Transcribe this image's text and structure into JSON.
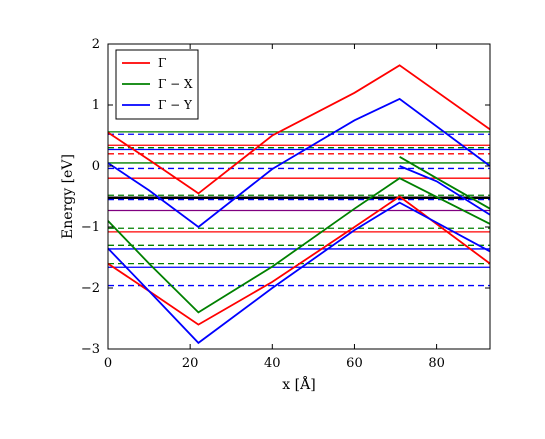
{
  "chart_data": {
    "type": "line",
    "title": "",
    "xlabel": "x [Å]",
    "ylabel": "Energy [eV]",
    "xlim": [
      0,
      93
    ],
    "ylim": [
      -3,
      2
    ],
    "x_ticks": [
      "0",
      "20",
      "40",
      "60",
      "80"
    ],
    "y_ticks": [
      "−3",
      "−2",
      "−1",
      "0",
      "1",
      "2"
    ],
    "grid": false,
    "legend_position": "top-left",
    "legend": [
      {
        "label": "Γ",
        "color": "#ff0000"
      },
      {
        "label": "Γ − X",
        "color": "#008000"
      },
      {
        "label": "Γ − Y",
        "color": "#0000ff"
      }
    ],
    "series": [
      {
        "name": "Γ",
        "color": "#ff0000",
        "x": [
          0,
          10,
          22,
          40,
          60,
          71,
          93
        ],
        "y": [
          0.55,
          0.1,
          -0.45,
          0.5,
          1.2,
          1.65,
          0.6
        ]
      },
      {
        "name": "Γ",
        "color": "#ff0000",
        "x": [
          0,
          10,
          22,
          40,
          60,
          71,
          93
        ],
        "y": [
          -1.6,
          -2.05,
          -2.6,
          -1.9,
          -1.0,
          -0.5,
          -1.6
        ]
      },
      {
        "name": "Γ − X",
        "color": "#008000",
        "x": [
          0,
          10,
          22,
          40,
          60,
          71,
          93
        ],
        "y": [
          -0.9,
          -1.6,
          -2.4,
          -1.65,
          -0.7,
          -0.2,
          -0.95
        ]
      },
      {
        "name": "Γ − X",
        "color": "#008000",
        "x": [
          71,
          80,
          93
        ],
        "y": [
          0.15,
          -0.2,
          -0.7
        ]
      },
      {
        "name": "Γ − Y",
        "color": "#0000ff",
        "x": [
          0,
          10,
          22,
          40,
          60,
          71,
          93
        ],
        "y": [
          0.05,
          -0.4,
          -1.0,
          -0.05,
          0.75,
          1.1,
          0.0
        ]
      },
      {
        "name": "Γ − Y",
        "color": "#0000ff",
        "x": [
          0,
          10,
          22,
          40,
          60,
          71,
          93
        ],
        "y": [
          -1.35,
          -2.05,
          -2.9,
          -2.0,
          -1.05,
          -0.6,
          -1.4
        ]
      },
      {
        "name": "Γ − Y",
        "color": "#0000ff",
        "x": [
          71,
          80,
          93
        ],
        "y": [
          0.0,
          -0.25,
          -0.8
        ]
      }
    ],
    "flat_bands": [
      {
        "y": 0.56,
        "color": "#008000"
      },
      {
        "y": 0.52,
        "color": "#0000ff"
      },
      {
        "y": 0.34,
        "color": "#ff0000"
      },
      {
        "y": 0.3,
        "color": "#008000"
      },
      {
        "y": 0.27,
        "color": "#0000ff"
      },
      {
        "y": 0.2,
        "color": "#ff0000"
      },
      {
        "y": 0.05,
        "color": "#008000"
      },
      {
        "y": -0.04,
        "color": "#0000ff"
      },
      {
        "y": -0.2,
        "color": "#ff0000"
      },
      {
        "y": -0.48,
        "color": "#008000"
      },
      {
        "y": -0.52,
        "color": "#000000"
      },
      {
        "y": -0.55,
        "color": "#0000ff"
      },
      {
        "y": -0.73,
        "color": "#800080"
      },
      {
        "y": -1.02,
        "color": "#008000"
      },
      {
        "y": -1.08,
        "color": "#ff0000"
      },
      {
        "y": -1.3,
        "color": "#008000"
      },
      {
        "y": -1.36,
        "color": "#0000ff"
      },
      {
        "y": -1.6,
        "color": "#008000"
      },
      {
        "y": -1.66,
        "color": "#0000ff"
      },
      {
        "y": -1.96,
        "color": "#0000ff"
      }
    ]
  }
}
